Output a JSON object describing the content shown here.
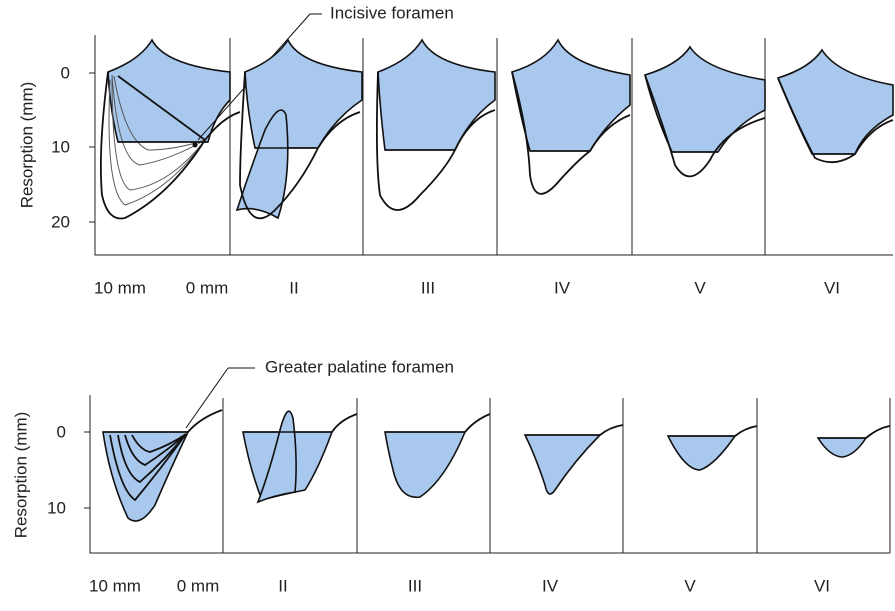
{
  "top_panel": {
    "annotation": "Incisive foramen",
    "y_label": "Resorption (mm)",
    "y_tick_labels": [
      "0",
      "10",
      "20"
    ],
    "x_labels": [
      "10 mm",
      "0 mm",
      "II",
      "III",
      "IV",
      "V",
      "VI"
    ]
  },
  "bottom_panel": {
    "annotation": "Greater palatine foramen",
    "y_label": "Resorption (mm)",
    "y_tick_labels": [
      "0",
      "10"
    ],
    "x_labels": [
      "10 mm",
      "0 mm",
      "II",
      "III",
      "IV",
      "V",
      "VI"
    ]
  }
}
